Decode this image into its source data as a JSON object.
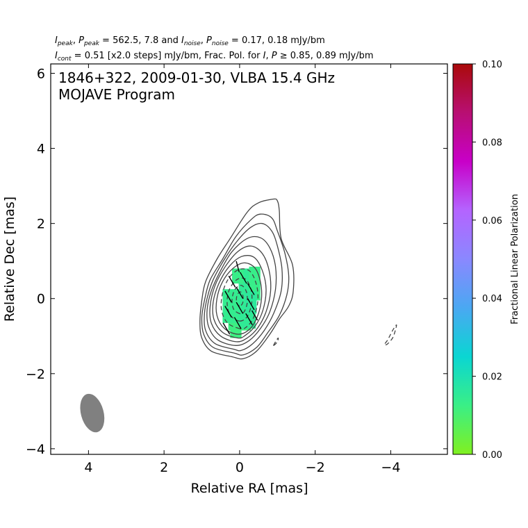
{
  "chart_data": {
    "type": "contour",
    "header": {
      "line1": {
        "i_peak_sym": "I",
        "i_peak_sub": "peak",
        "p_peak_sym": "P",
        "p_peak_sub": "peak",
        "peak_vals": " = 562.5, 7.8 and ",
        "i_noise_sym": "I",
        "i_noise_sub": "noise",
        "p_noise_sym": "P",
        "p_noise_sub": "noise",
        "noise_vals": " = 0.17, 0.18 mJy/bm"
      },
      "line2": {
        "i_cont_sym": "I",
        "i_cont_sub": "cont",
        "cont_vals": " = 0.51 [x2.0 steps] mJy/bm, Frac. Pol. for ",
        "i_sym": "I",
        "p_sym": "P",
        "threshold": " ≥  0.85, 0.89 mJy/bm"
      }
    },
    "title": "1846+322, 2009-01-30, VLBA 15.4 GHz",
    "subtitle": "MOJAVE Program",
    "xlabel": "Relative RA [mas]",
    "ylabel": "Relative Dec [mas]",
    "xlim": [
      5.0,
      -5.5
    ],
    "ylim": [
      -4.15,
      6.25
    ],
    "x_ticks": [
      4,
      2,
      0,
      -2,
      -4
    ],
    "x_tick_labels": [
      "4",
      "2",
      "0",
      "−2",
      "−4"
    ],
    "y_ticks": [
      6,
      4,
      2,
      0,
      -2,
      -4
    ],
    "y_tick_labels": [
      "6",
      "4",
      "2",
      "0",
      "−2",
      "−4"
    ],
    "colorbar": {
      "label": "Fractional Linear Polarization",
      "range": [
        0.0,
        0.1
      ],
      "ticks": [
        0.0,
        0.02,
        0.04,
        0.06,
        0.08,
        0.1
      ],
      "tick_labels": [
        "0.00",
        "0.02",
        "0.04",
        "0.06",
        "0.08",
        "0.10"
      ],
      "colors": [
        "#80f020",
        "#3aef86",
        "#0ad6d2",
        "#4aa8f2",
        "#8a88ff",
        "#b464ff",
        "#c800c8",
        "#b80f72",
        "#aa0a0a"
      ]
    },
    "beam": {
      "x": 3.9,
      "y": -3.05,
      "major": 1.05,
      "minor": 0.6,
      "pa_deg": -15,
      "color": "#808080"
    },
    "contour_levels": [
      0.51,
      1.02,
      2.04,
      4.08,
      8.16,
      16.3,
      32.6,
      65.3,
      131,
      261,
      522
    ],
    "contours": [
      {
        "level_index": 0,
        "style": "solid",
        "points": [
          [
            0.2,
            -1.55
          ],
          [
            0.75,
            -1.4
          ],
          [
            1.0,
            -1.05
          ],
          [
            1.05,
            -0.6
          ],
          [
            1.0,
            -0.05
          ],
          [
            0.9,
            0.45
          ],
          [
            0.6,
            1.05
          ],
          [
            0.25,
            1.6
          ],
          [
            -0.2,
            2.3
          ],
          [
            -0.5,
            2.55
          ],
          [
            -0.9,
            2.65
          ],
          [
            -1.0,
            2.6
          ],
          [
            -1.05,
            2.35
          ],
          [
            -1.1,
            1.6
          ],
          [
            -1.4,
            0.9
          ],
          [
            -1.42,
            0.2
          ],
          [
            -1.3,
            -0.2
          ],
          [
            -1.05,
            -0.55
          ],
          [
            -0.8,
            -0.95
          ],
          [
            -0.45,
            -1.4
          ],
          [
            -0.1,
            -1.6
          ]
        ]
      },
      {
        "level_index": 1,
        "style": "solid",
        "points": [
          [
            0.15,
            -1.45
          ],
          [
            0.7,
            -1.3
          ],
          [
            0.95,
            -0.95
          ],
          [
            1.0,
            -0.5
          ],
          [
            0.92,
            0.0
          ],
          [
            0.78,
            0.5
          ],
          [
            0.45,
            1.05
          ],
          [
            0.1,
            1.65
          ],
          [
            -0.3,
            2.1
          ],
          [
            -0.55,
            2.25
          ],
          [
            -0.85,
            2.15
          ],
          [
            -1.0,
            1.8
          ],
          [
            -1.2,
            1.2
          ],
          [
            -1.3,
            0.6
          ],
          [
            -1.25,
            0.1
          ],
          [
            -1.05,
            -0.45
          ],
          [
            -0.75,
            -0.9
          ],
          [
            -0.45,
            -1.3
          ],
          [
            -0.1,
            -1.5
          ]
        ]
      },
      {
        "level_index": 2,
        "style": "solid",
        "points": [
          [
            0.15,
            -1.35
          ],
          [
            0.65,
            -1.2
          ],
          [
            0.9,
            -0.85
          ],
          [
            0.93,
            -0.4
          ],
          [
            0.85,
            0.05
          ],
          [
            0.7,
            0.5
          ],
          [
            0.4,
            1.05
          ],
          [
            0.05,
            1.55
          ],
          [
            -0.3,
            1.9
          ],
          [
            -0.6,
            2.0
          ],
          [
            -0.85,
            1.8
          ],
          [
            -1.0,
            1.4
          ],
          [
            -1.12,
            0.8
          ],
          [
            -1.1,
            0.2
          ],
          [
            -0.9,
            -0.4
          ],
          [
            -0.65,
            -0.85
          ],
          [
            -0.35,
            -1.2
          ],
          [
            -0.05,
            -1.38
          ]
        ]
      },
      {
        "level_index": 3,
        "style": "solid",
        "points": [
          [
            0.1,
            -1.25
          ],
          [
            0.58,
            -1.1
          ],
          [
            0.82,
            -0.75
          ],
          [
            0.86,
            -0.3
          ],
          [
            0.75,
            0.2
          ],
          [
            0.5,
            0.75
          ],
          [
            0.2,
            1.25
          ],
          [
            -0.2,
            1.6
          ],
          [
            -0.55,
            1.62
          ],
          [
            -0.8,
            1.35
          ],
          [
            -0.95,
            0.85
          ],
          [
            -0.95,
            0.25
          ],
          [
            -0.8,
            -0.35
          ],
          [
            -0.55,
            -0.8
          ],
          [
            -0.25,
            -1.12
          ]
        ]
      },
      {
        "level_index": 4,
        "style": "solid",
        "points": [
          [
            0.08,
            -1.15
          ],
          [
            0.5,
            -1.0
          ],
          [
            0.75,
            -0.65
          ],
          [
            0.78,
            -0.2
          ],
          [
            0.65,
            0.35
          ],
          [
            0.38,
            0.85
          ],
          [
            0.05,
            1.25
          ],
          [
            -0.3,
            1.4
          ],
          [
            -0.6,
            1.2
          ],
          [
            -0.78,
            0.75
          ],
          [
            -0.82,
            0.2
          ],
          [
            -0.7,
            -0.35
          ],
          [
            -0.48,
            -0.78
          ],
          [
            -0.2,
            -1.05
          ]
        ]
      },
      {
        "level_index": 5,
        "style": "solid",
        "points": [
          [
            0.05,
            -1.05
          ],
          [
            0.45,
            -0.9
          ],
          [
            0.68,
            -0.55
          ],
          [
            0.7,
            -0.1
          ],
          [
            0.55,
            0.4
          ],
          [
            0.28,
            0.85
          ],
          [
            -0.05,
            1.12
          ],
          [
            -0.38,
            1.1
          ],
          [
            -0.6,
            0.75
          ],
          [
            -0.7,
            0.25
          ],
          [
            -0.62,
            -0.3
          ],
          [
            -0.42,
            -0.72
          ],
          [
            -0.15,
            -0.98
          ]
        ]
      },
      {
        "level_index": 6,
        "style": "solid",
        "points": [
          [
            0.03,
            -0.95
          ],
          [
            0.4,
            -0.8
          ],
          [
            0.6,
            -0.45
          ],
          [
            0.6,
            0.0
          ],
          [
            0.45,
            0.45
          ],
          [
            0.18,
            0.8
          ],
          [
            -0.12,
            0.95
          ],
          [
            -0.4,
            0.82
          ],
          [
            -0.55,
            0.45
          ],
          [
            -0.58,
            0.0
          ],
          [
            -0.48,
            -0.45
          ],
          [
            -0.28,
            -0.8
          ]
        ]
      },
      {
        "level_index": 7,
        "style": "dashed",
        "points": [
          [
            0.0,
            -0.8
          ],
          [
            0.32,
            -0.65
          ],
          [
            0.48,
            -0.3
          ],
          [
            0.45,
            0.15
          ],
          [
            0.28,
            0.55
          ],
          [
            0.0,
            0.78
          ],
          [
            -0.28,
            0.72
          ],
          [
            -0.45,
            0.35
          ],
          [
            -0.48,
            -0.1
          ],
          [
            -0.35,
            -0.55
          ],
          [
            -0.15,
            -0.78
          ]
        ]
      },
      {
        "level_index": 8,
        "style": "dashed",
        "points": [
          [
            0.0,
            -0.6
          ],
          [
            0.24,
            -0.45
          ],
          [
            0.33,
            -0.15
          ],
          [
            0.28,
            0.22
          ],
          [
            0.08,
            0.5
          ],
          [
            -0.15,
            0.52
          ],
          [
            -0.3,
            0.25
          ],
          [
            -0.32,
            -0.12
          ],
          [
            -0.2,
            -0.48
          ]
        ]
      },
      {
        "level_index": 9,
        "style": "dashed",
        "points": [
          [
            0.0,
            -0.4
          ],
          [
            0.16,
            -0.28
          ],
          [
            0.2,
            -0.02
          ],
          [
            0.12,
            0.25
          ],
          [
            -0.05,
            0.35
          ],
          [
            -0.18,
            0.18
          ],
          [
            -0.2,
            -0.12
          ],
          [
            -0.12,
            -0.35
          ]
        ]
      },
      {
        "level_index": 10,
        "style": "dashed",
        "points": [
          [
            0.0,
            -0.2
          ],
          [
            0.08,
            -0.1
          ],
          [
            0.07,
            0.08
          ],
          [
            -0.02,
            0.18
          ],
          [
            -0.09,
            0.06
          ],
          [
            -0.08,
            -0.12
          ]
        ]
      },
      {
        "level_index": -1,
        "style": "dashed",
        "points": [
          [
            -3.85,
            -1.2
          ],
          [
            -3.92,
            -1.1
          ],
          [
            -4.05,
            -0.85
          ],
          [
            -4.15,
            -0.7
          ],
          [
            -4.12,
            -0.85
          ],
          [
            -4.05,
            -1.05
          ],
          [
            -3.9,
            -1.22
          ]
        ]
      },
      {
        "level_index": -1,
        "style": "dashed",
        "points": [
          [
            -0.9,
            -1.25
          ],
          [
            -0.95,
            -1.15
          ],
          [
            -1.02,
            -1.05
          ],
          [
            -1.0,
            -1.15
          ]
        ]
      }
    ],
    "polarization_pixels": [
      {
        "x": 0.0,
        "y": -0.6,
        "w": 0.6,
        "h": 0.5,
        "frac": 0.012
      },
      {
        "x": 0.2,
        "y": -0.2,
        "w": 0.5,
        "h": 0.9,
        "frac": 0.014
      },
      {
        "x": -0.2,
        "y": 0.0,
        "w": 0.45,
        "h": 1.6,
        "frac": 0.015
      },
      {
        "x": -0.4,
        "y": 0.4,
        "w": 0.3,
        "h": 0.9,
        "frac": 0.013
      },
      {
        "x": 0.05,
        "y": 0.6,
        "w": 0.3,
        "h": 0.4,
        "frac": 0.013
      },
      {
        "x": -0.3,
        "y": -0.1,
        "w": 0.3,
        "h": 0.6,
        "frac": 0.016
      },
      {
        "x": 0.1,
        "y": -0.9,
        "w": 0.3,
        "h": 0.3,
        "frac": 0.012
      }
    ],
    "evpa_vectors": [
      {
        "x": 0.35,
        "y": -0.8,
        "len": 0.35,
        "angle_deg": 60
      },
      {
        "x": 0.05,
        "y": -0.65,
        "len": 0.35,
        "angle_deg": 60
      },
      {
        "x": -0.25,
        "y": -0.55,
        "len": 0.35,
        "angle_deg": 60
      },
      {
        "x": 0.3,
        "y": -0.35,
        "len": 0.35,
        "angle_deg": 60
      },
      {
        "x": 0.0,
        "y": -0.25,
        "len": 0.35,
        "angle_deg": 60
      },
      {
        "x": -0.3,
        "y": -0.15,
        "len": 0.35,
        "angle_deg": 60
      },
      {
        "x": 0.3,
        "y": 0.05,
        "len": 0.35,
        "angle_deg": 60
      },
      {
        "x": 0.0,
        "y": 0.15,
        "len": 0.35,
        "angle_deg": 60
      },
      {
        "x": -0.3,
        "y": 0.25,
        "len": 0.35,
        "angle_deg": 60
      },
      {
        "x": 0.2,
        "y": 0.45,
        "len": 0.35,
        "angle_deg": 60
      },
      {
        "x": -0.1,
        "y": 0.55,
        "len": 0.35,
        "angle_deg": 60
      },
      {
        "x": 0.05,
        "y": 0.85,
        "len": 0.3,
        "angle_deg": 75
      },
      {
        "x": -0.4,
        "y": -0.45,
        "len": 0.3,
        "angle_deg": 60
      }
    ]
  }
}
